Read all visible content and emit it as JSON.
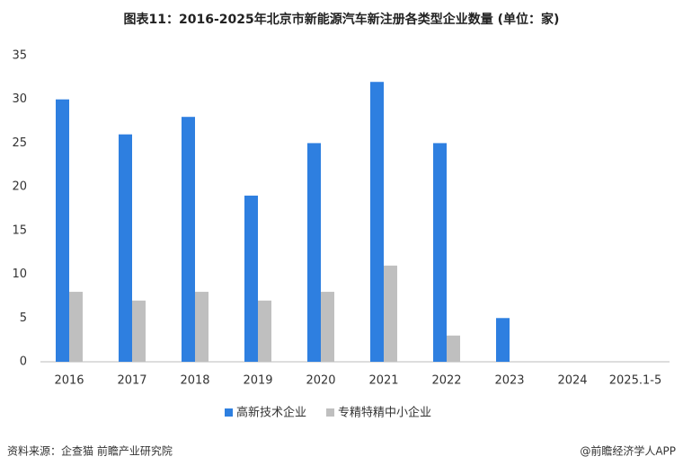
{
  "chart_data": {
    "type": "bar",
    "title": "图表11：2016-2025年北京市新能源汽车新注册各类型企业数量 (单位：家)",
    "categories": [
      "2016",
      "2017",
      "2018",
      "2019",
      "2020",
      "2021",
      "2022",
      "2023",
      "2024",
      "2025.1-5"
    ],
    "series": [
      {
        "name": "高新技术企业",
        "color": "#2e7fe0",
        "values": [
          30,
          26,
          28,
          19,
          25,
          32,
          25,
          5,
          null,
          null
        ]
      },
      {
        "name": "专精特精中小企业",
        "color": "#bfbfbf",
        "values": [
          8,
          7,
          8,
          7,
          8,
          11,
          3,
          null,
          null,
          null
        ]
      }
    ],
    "ylim": [
      0,
      35
    ],
    "yticks": [
      0,
      5,
      10,
      15,
      20,
      25,
      30,
      35
    ],
    "grid": false,
    "source": "资料来源：企查猫 前瞻产业研究院",
    "credit": "@前瞻经济学人APP"
  }
}
